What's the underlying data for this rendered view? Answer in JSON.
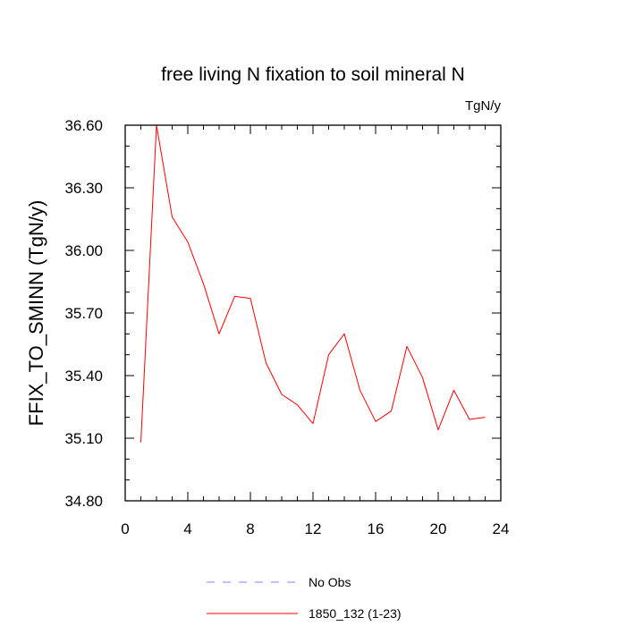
{
  "chart_data": {
    "type": "line",
    "title": "free living N fixation to soil mineral N",
    "units_label": "TgN/y",
    "ylabel": "FFIX_TO_SMINN  (TgN/y)",
    "xlabel": "",
    "xlim": [
      0,
      24
    ],
    "ylim": [
      34.8,
      36.6
    ],
    "x_ticks": [
      0,
      4,
      8,
      12,
      16,
      20,
      24
    ],
    "x_tick_labels": [
      "0",
      "4",
      "8",
      "12",
      "16",
      "20",
      "24"
    ],
    "y_ticks": [
      34.8,
      35.1,
      35.4,
      35.7,
      36.0,
      36.3,
      36.6
    ],
    "y_tick_labels": [
      "34.80",
      "35.10",
      "35.40",
      "35.70",
      "36.00",
      "36.30",
      "36.60"
    ],
    "grid": false,
    "series": [
      {
        "name": "1850_132 (1-23)",
        "color": "#ff0000",
        "x": [
          1,
          2,
          3,
          4,
          5,
          6,
          7,
          8,
          9,
          10,
          11,
          12,
          13,
          14,
          15,
          16,
          17,
          18,
          19,
          20,
          21,
          22,
          23
        ],
        "values": [
          35.08,
          36.6,
          36.16,
          36.04,
          35.84,
          35.6,
          35.78,
          35.77,
          35.46,
          35.31,
          35.26,
          35.17,
          35.5,
          35.6,
          35.33,
          35.18,
          35.23,
          35.54,
          35.39,
          35.14,
          35.33,
          35.19,
          35.2
        ]
      }
    ],
    "legend": {
      "placement": "bottom-center",
      "entries": [
        {
          "label": "No Obs",
          "color": "#8080ff",
          "style": "dashed"
        },
        {
          "label": "1850_132 (1-23)",
          "color": "#ff0000",
          "style": "solid"
        }
      ]
    }
  }
}
